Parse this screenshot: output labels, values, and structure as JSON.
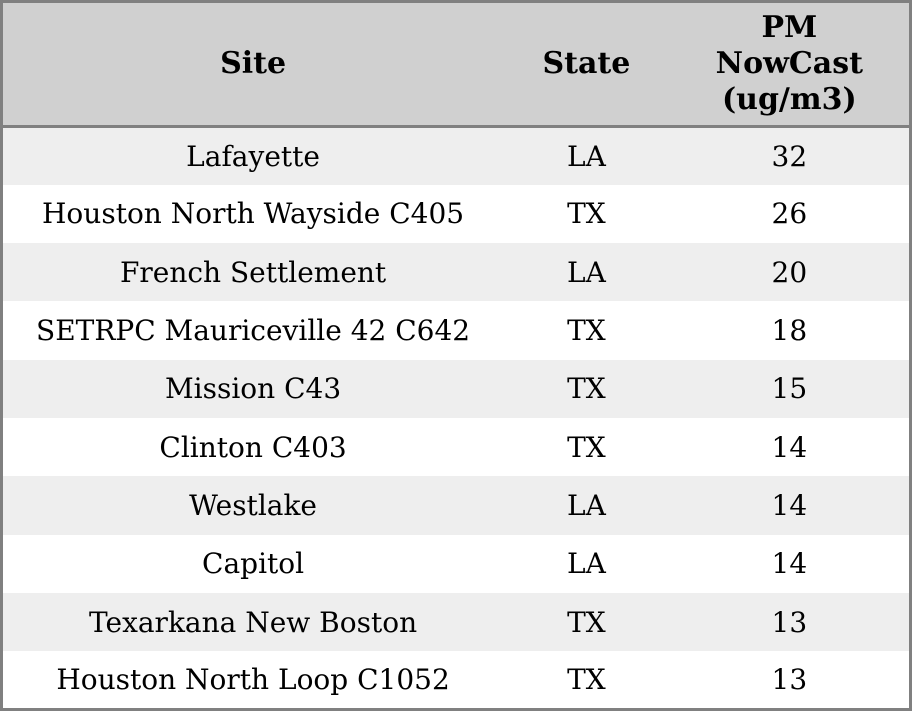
{
  "chart_data": {
    "type": "table",
    "title": "",
    "columns": [
      "Site",
      "State",
      "PM NowCast (ug/m3)"
    ],
    "rows": [
      [
        "Lafayette",
        "LA",
        32
      ],
      [
        "Houston North Wayside C405",
        "TX",
        26
      ],
      [
        "French Settlement",
        "LA",
        20
      ],
      [
        "SETRPC Mauriceville 42 C642",
        "TX",
        18
      ],
      [
        "Mission C43",
        "TX",
        15
      ],
      [
        "Clinton C403",
        "TX",
        14
      ],
      [
        "Westlake",
        "LA",
        14
      ],
      [
        "Capitol",
        "LA",
        14
      ],
      [
        "Texarkana New Boston",
        "TX",
        13
      ],
      [
        "Houston North Loop C1052",
        "TX",
        13
      ]
    ]
  },
  "table": {
    "header": {
      "site": "Site",
      "state": "State",
      "pm": "PM NowCast (ug/m3)"
    },
    "rows": [
      {
        "site": "Lafayette",
        "state": "LA",
        "pm": "32"
      },
      {
        "site": "Houston North Wayside C405",
        "state": "TX",
        "pm": "26"
      },
      {
        "site": "French Settlement",
        "state": "LA",
        "pm": "20"
      },
      {
        "site": "SETRPC Mauriceville 42 C642",
        "state": "TX",
        "pm": "18"
      },
      {
        "site": "Mission C43",
        "state": "TX",
        "pm": "15"
      },
      {
        "site": "Clinton C403",
        "state": "TX",
        "pm": "14"
      },
      {
        "site": "Westlake",
        "state": "LA",
        "pm": "14"
      },
      {
        "site": "Capitol",
        "state": "LA",
        "pm": "14"
      },
      {
        "site": "Texarkana New Boston",
        "state": "TX",
        "pm": "13"
      },
      {
        "site": "Houston North Loop C1052",
        "state": "TX",
        "pm": "13"
      }
    ]
  },
  "colors": {
    "frame_border": "#808080",
    "header_bg": "#d0d0d0",
    "row_stripe_bg": "#eeeeee",
    "row_bg": "#ffffff",
    "text": "#000000"
  }
}
